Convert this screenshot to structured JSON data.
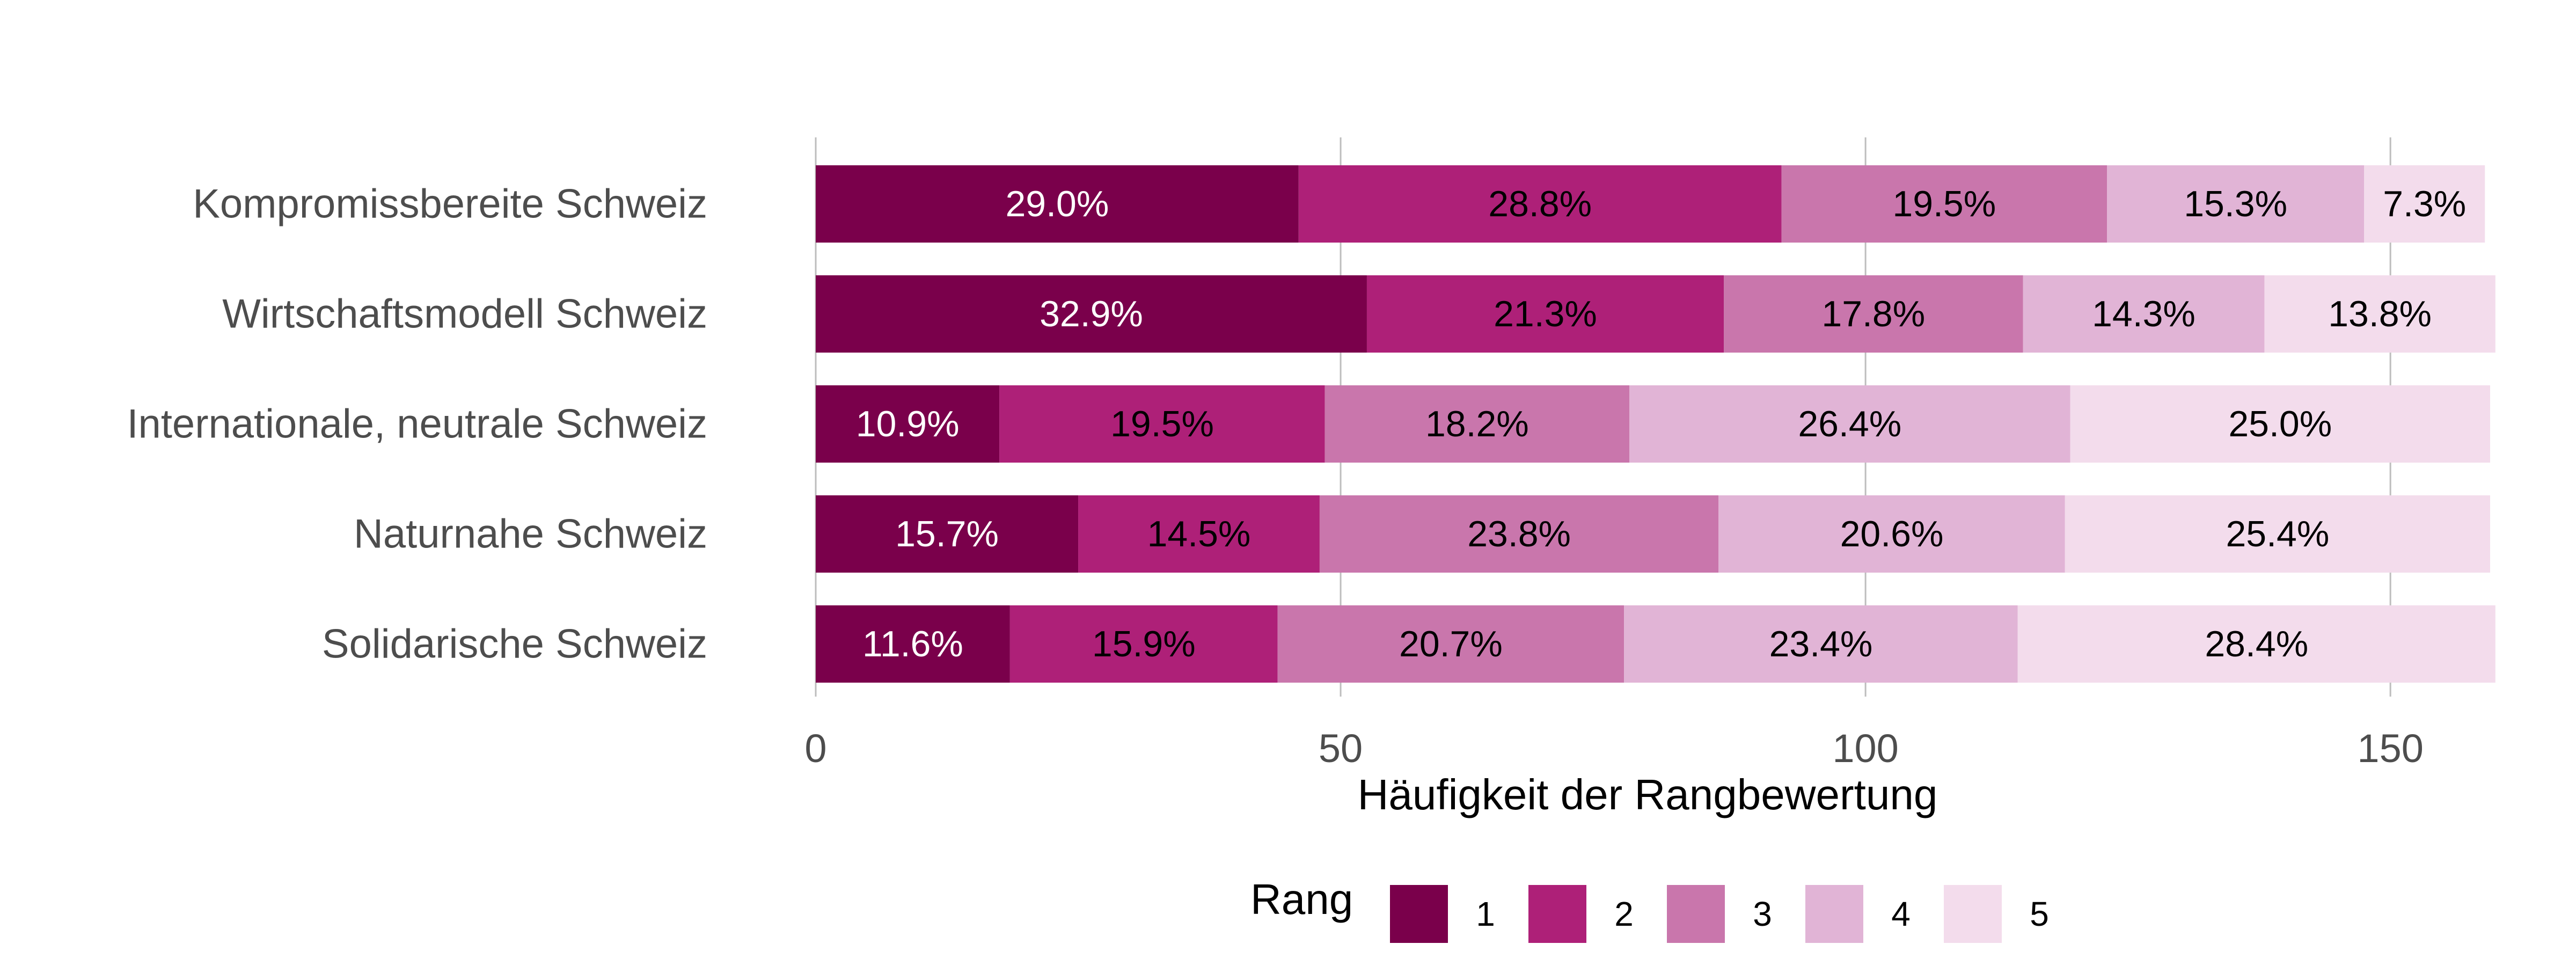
{
  "chart_data": {
    "type": "bar",
    "orientation": "horizontal",
    "stacked": true,
    "categories": [
      "Kompromissbereite Schweiz",
      "Wirtschaftsmodell Schweiz",
      "Internationale, neutrale Schweiz",
      "Naturnahe Schweiz",
      "Solidarische Schweiz"
    ],
    "series": [
      {
        "name": "1",
        "color": "#7a004b",
        "values": [
          46,
          52.5,
          17.5,
          25,
          18.5
        ],
        "labels": [
          "29.0%",
          "32.9%",
          "10.9%",
          "15.7%",
          "11.6%"
        ]
      },
      {
        "name": "2",
        "color": "#ae2078",
        "values": [
          46,
          34,
          31,
          23,
          25.5
        ],
        "labels": [
          "28.8%",
          "21.3%",
          "19.5%",
          "14.5%",
          "15.9%"
        ]
      },
      {
        "name": "3",
        "color": "#c976ac",
        "values": [
          31,
          28.5,
          29,
          38,
          33
        ],
        "labels": [
          "19.5%",
          "17.8%",
          "18.2%",
          "23.8%",
          "20.7%"
        ]
      },
      {
        "name": "4",
        "color": "#e1b4d6",
        "values": [
          24.5,
          23,
          42,
          33,
          37.5
        ],
        "labels": [
          "15.3%",
          "14.3%",
          "26.4%",
          "20.6%",
          "23.4%"
        ]
      },
      {
        "name": "5",
        "color": "#f3dcec",
        "values": [
          11.5,
          22,
          40,
          40.5,
          45.5
        ],
        "labels": [
          "7.3%",
          "13.8%",
          "25.0%",
          "25.4%",
          "28.4%"
        ]
      }
    ],
    "label_colors": [
      "#ffffff",
      "#000000",
      "#000000",
      "#000000",
      "#000000"
    ],
    "xlabel": "Häufigkeit der Rangbewertung",
    "ylabel": "",
    "xlim": [
      0,
      159.5
    ],
    "xticks": [
      0,
      50,
      100,
      150
    ],
    "grid": "vertical",
    "legend": {
      "title": "Rang",
      "position": "bottom"
    }
  }
}
